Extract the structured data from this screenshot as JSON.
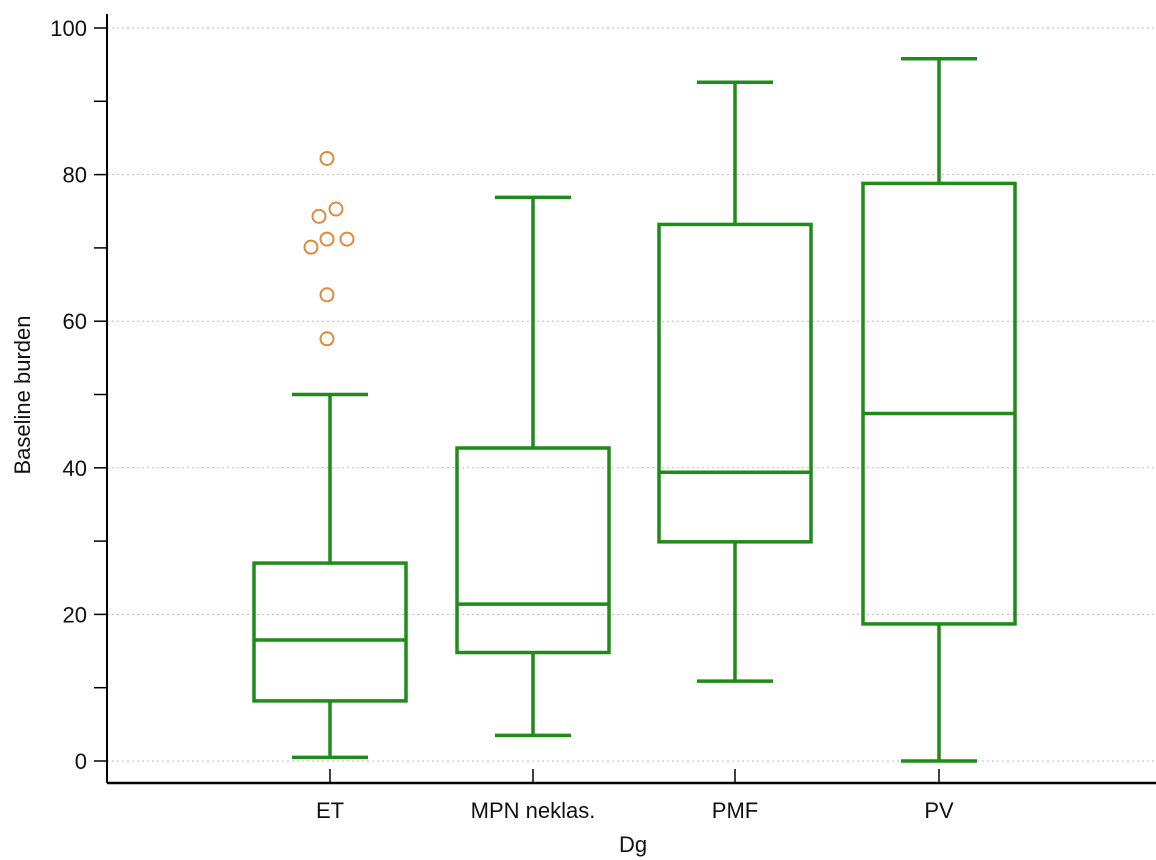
{
  "chart_data": {
    "type": "box",
    "title": "",
    "xlabel": "Dg",
    "ylabel": "Baseline burden",
    "ylim": [
      0,
      100
    ],
    "yticks": [
      0,
      20,
      40,
      60,
      80,
      100
    ],
    "y_minor_step": 10,
    "grid": "horizontal dotted at major ticks",
    "categories": [
      "ET",
      "MPN neklas.",
      "PMF",
      "PV"
    ],
    "boxes": [
      {
        "category": "ET",
        "whisker_low": 0.5,
        "q1": 8.2,
        "median": 16.5,
        "q3": 27.0,
        "whisker_high": 50.0,
        "outliers": [
          57.6,
          63.6,
          70.1,
          71.2,
          71.2,
          74.3,
          75.3,
          82.2
        ]
      },
      {
        "category": "MPN neklas.",
        "whisker_low": 3.5,
        "q1": 14.8,
        "median": 21.4,
        "q3": 42.7,
        "whisker_high": 76.9,
        "outliers": []
      },
      {
        "category": "PMF",
        "whisker_low": 10.9,
        "q1": 29.9,
        "median": 39.4,
        "q3": 73.2,
        "whisker_high": 92.6,
        "outliers": []
      },
      {
        "category": "PV",
        "whisker_low": 0.0,
        "q1": 18.7,
        "median": 47.4,
        "q3": 78.8,
        "whisker_high": 95.8,
        "outliers": []
      }
    ],
    "colors": {
      "box": "#1f8c1a",
      "outlier": "#e08a3c",
      "grid": "#bbbbbb",
      "axis": "#000000"
    }
  }
}
